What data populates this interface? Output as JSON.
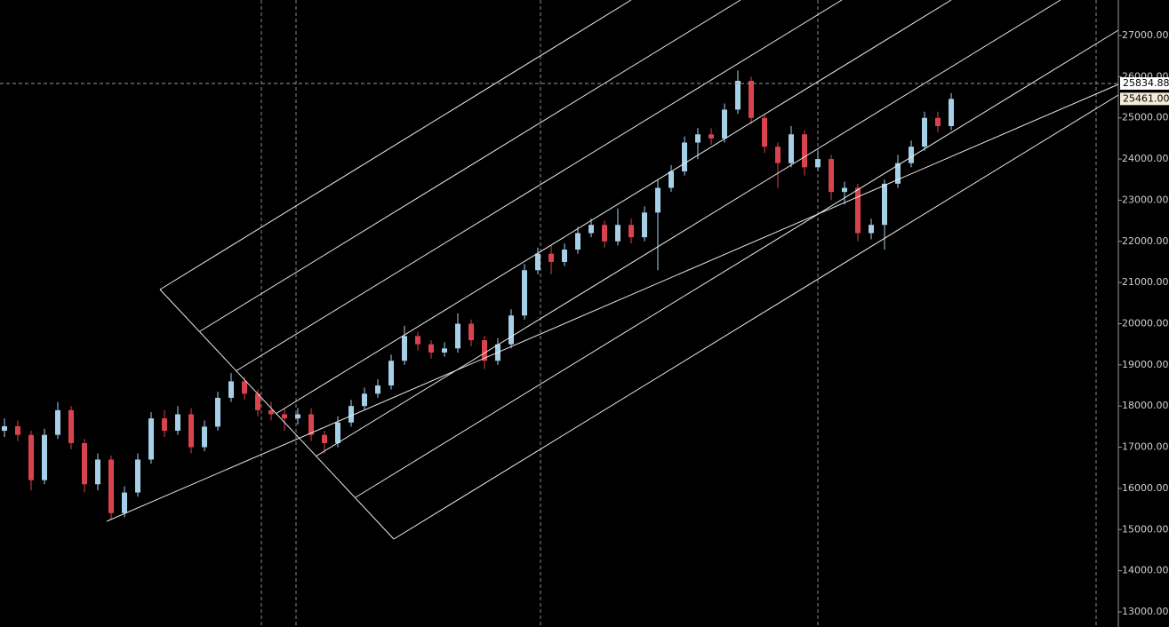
{
  "chart_data": {
    "type": "candlestick",
    "open": [
      17400,
      17510,
      17300,
      16200,
      17300,
      17900,
      17100,
      16100,
      16700,
      15400,
      15900,
      16700,
      17700,
      17400,
      17800,
      17000,
      17500,
      18200,
      18600,
      18300,
      17900,
      17800,
      17700,
      17800,
      17300,
      17100,
      17600,
      18000,
      18300,
      18500,
      19100,
      19700,
      19500,
      19300,
      19400,
      20000,
      19600,
      19100,
      19500,
      20200,
      21300,
      21700,
      21500,
      21800,
      22200,
      22400,
      22000,
      22400,
      22100,
      22700,
      23300,
      23700,
      24400,
      24600,
      24500,
      25200,
      25900,
      25000,
      24300,
      23900,
      24600,
      23800,
      24000,
      23200,
      23300,
      22200,
      22400,
      23400,
      23900,
      24300,
      25000,
      24800
    ],
    "high": [
      17700,
      17650,
      17400,
      17450,
      18100,
      18000,
      17200,
      16850,
      16800,
      16050,
      16850,
      17850,
      17900,
      18000,
      17950,
      17650,
      18350,
      18800,
      18700,
      18400,
      18100,
      17950,
      17950,
      17950,
      17400,
      17750,
      18150,
      18450,
      18650,
      19250,
      19950,
      19800,
      19600,
      19550,
      20250,
      20100,
      19700,
      19650,
      20350,
      21450,
      21850,
      21900,
      21950,
      22350,
      22550,
      22500,
      22800,
      22550,
      22850,
      23500,
      23850,
      24550,
      24750,
      24750,
      25350,
      26150,
      26000,
      25100,
      24400,
      24800,
      24700,
      24200,
      24100,
      23450,
      23400,
      22550,
      23500,
      24100,
      24450,
      25150,
      25150,
      25600
    ],
    "low": [
      17250,
      17150,
      15950,
      16100,
      17200,
      16950,
      15900,
      15950,
      15250,
      15300,
      15800,
      16600,
      17250,
      17300,
      16850,
      16900,
      17400,
      18100,
      18150,
      17750,
      17650,
      17400,
      17550,
      17150,
      16850,
      17000,
      17500,
      17900,
      18200,
      18400,
      19000,
      19350,
      19150,
      19200,
      19300,
      19450,
      18900,
      19000,
      19400,
      20100,
      21200,
      21200,
      21400,
      21700,
      22100,
      21850,
      21900,
      21950,
      22000,
      21300,
      23200,
      23600,
      24000,
      24350,
      24400,
      25100,
      24850,
      24150,
      23300,
      23800,
      23600,
      23700,
      23000,
      22900,
      22000,
      22050,
      21800,
      23300,
      23800,
      24200,
      24650,
      24700
    ],
    "close": [
      17510,
      17300,
      16200,
      17300,
      17900,
      17100,
      16100,
      16700,
      15400,
      15900,
      16700,
      17700,
      17400,
      17800,
      17000,
      17500,
      18200,
      18600,
      18300,
      17900,
      17800,
      17700,
      17800,
      17300,
      17100,
      17600,
      18000,
      18300,
      18500,
      19100,
      19700,
      19500,
      19300,
      19400,
      20000,
      19600,
      19100,
      19500,
      20200,
      21300,
      21700,
      21500,
      21800,
      22200,
      22400,
      22000,
      22400,
      22100,
      22700,
      23300,
      23700,
      24400,
      24600,
      24500,
      25200,
      25900,
      25000,
      24300,
      23900,
      24600,
      23800,
      24000,
      23200,
      23300,
      22200,
      22400,
      23400,
      23900,
      24300,
      25000,
      24800,
      25461
    ],
    "up_color": "#a6cfe8",
    "down_color": "#d9434d",
    "ylim": [
      12633,
      27863
    ],
    "yticks": [
      {
        "value": 13000,
        "label": "13000.00"
      },
      {
        "value": 14000,
        "label": "14000.00"
      },
      {
        "value": 15000,
        "label": "15000.00"
      },
      {
        "value": 16000,
        "label": "16000.00"
      },
      {
        "value": 17000,
        "label": "17000.00"
      },
      {
        "value": 18000,
        "label": "18000.00"
      },
      {
        "value": 19000,
        "label": "19000.00"
      },
      {
        "value": 20000,
        "label": "20000.00"
      },
      {
        "value": 21000,
        "label": "21000.00"
      },
      {
        "value": 22000,
        "label": "22000.00"
      },
      {
        "value": 23000,
        "label": "23000.00"
      },
      {
        "value": 24000,
        "label": "24000.00"
      },
      {
        "value": 25000,
        "label": "25000.00"
      },
      {
        "value": 26000,
        "label": "26000.00"
      },
      {
        "value": 27000,
        "label": "27000.00"
      }
    ],
    "crosshair": {
      "value": 25834.88,
      "label": "25834.88"
    },
    "last_price": {
      "value": 25461,
      "label": "25461.00"
    }
  }
}
